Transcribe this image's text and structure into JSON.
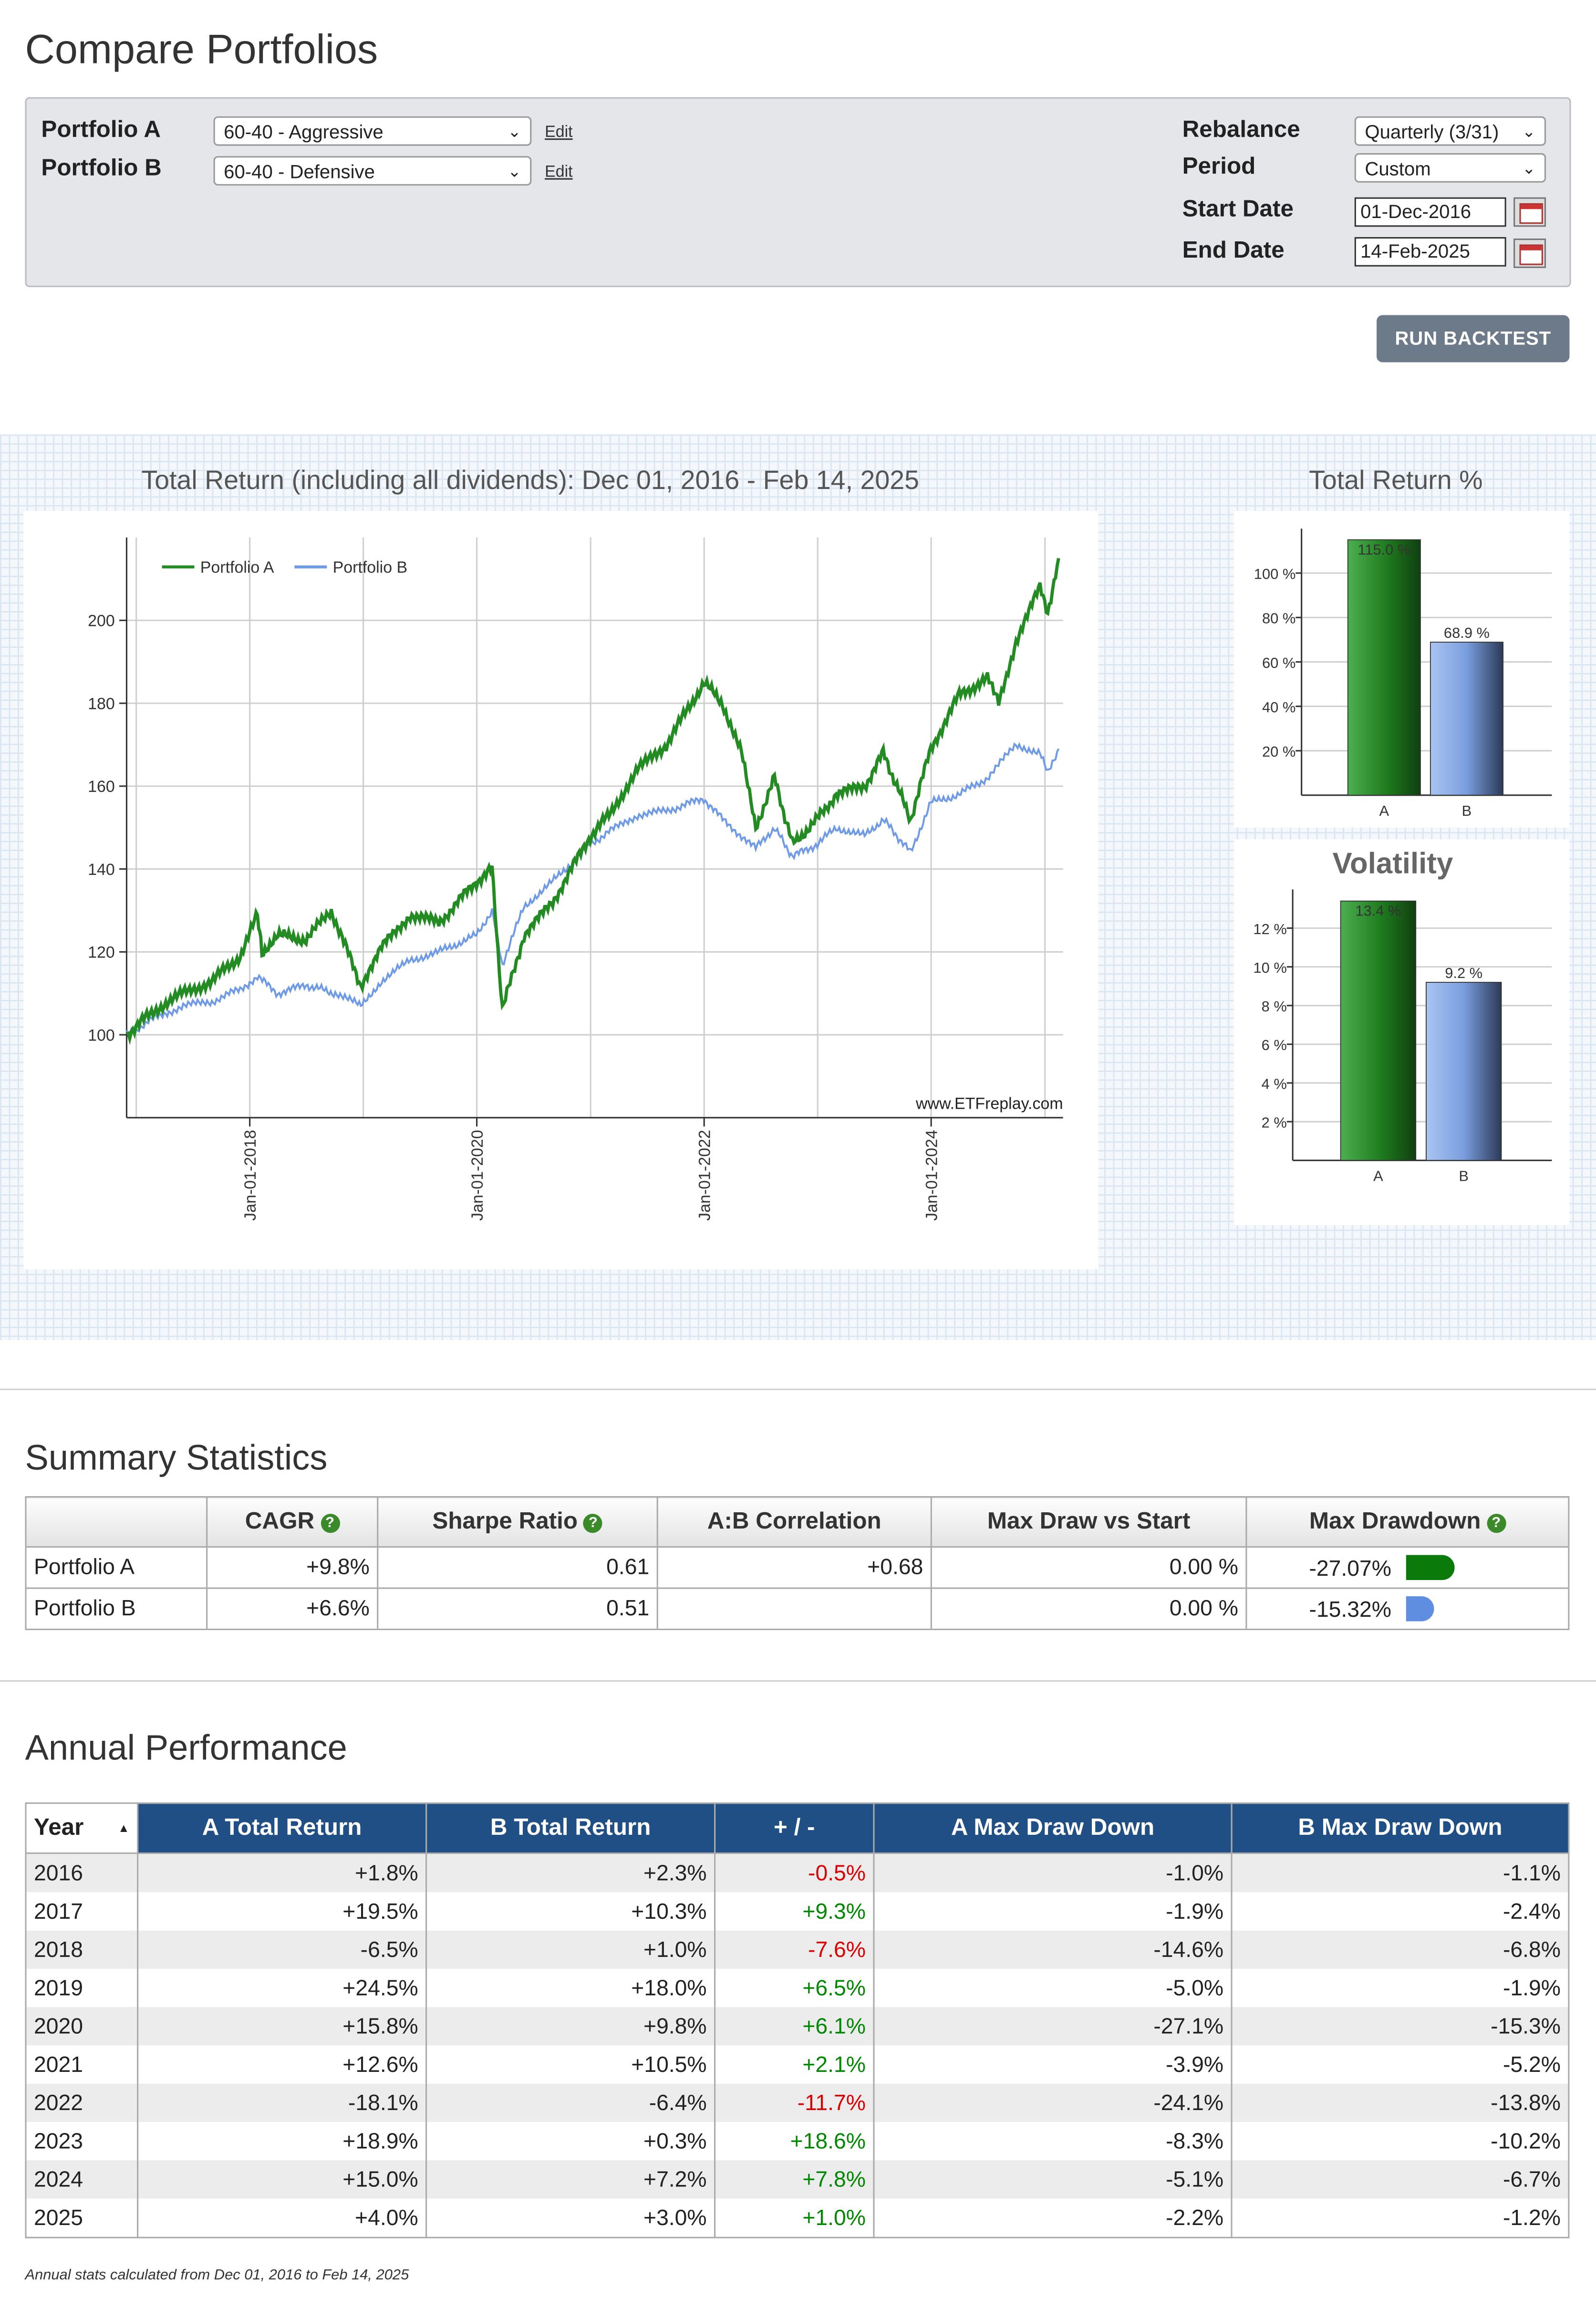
{
  "page_title": "Compare Portfolios",
  "form": {
    "portfolio_a_label": "Portfolio A",
    "portfolio_a_value": "60-40 - Aggressive",
    "portfolio_b_label": "Portfolio B",
    "portfolio_b_value": "60-40 - Defensive",
    "edit_label": "Edit",
    "rebalance_label": "Rebalance",
    "rebalance_value": "Quarterly (3/31)",
    "period_label": "Period",
    "period_value": "Custom",
    "start_label": "Start Date",
    "start_value": "01-Dec-2016",
    "end_label": "End Date",
    "end_value": "14-Feb-2025",
    "run_label": "RUN BACKTEST"
  },
  "charts": {
    "main_title": "Total Return (including all dividends): Dec 01, 2016 - Feb 14, 2025",
    "side_title": "Total Return %",
    "vol_title": "Volatility",
    "watermark": "www.ETFreplay.com",
    "colors": {
      "a": "#228b22",
      "b": "#6f9ae6"
    }
  },
  "chart_data": [
    {
      "type": "line",
      "legend": [
        "Portfolio A",
        "Portfolio B"
      ],
      "legend_position": "top-left",
      "x_ticks": [
        "Jan-01-2018",
        "Jan-01-2020",
        "Jan-01-2022",
        "Jan-01-2024"
      ],
      "y_ticks": [
        100,
        120,
        140,
        160,
        180,
        200
      ],
      "ylim": [
        80,
        220
      ],
      "grid": true,
      "series": [
        {
          "name": "Portfolio A",
          "x": [
            "2016-12-01",
            "2017-03-01",
            "2017-06-01",
            "2017-09-01",
            "2017-12-01",
            "2018-01-26",
            "2018-02-09",
            "2018-04-01",
            "2018-07-01",
            "2018-09-20",
            "2018-12-24",
            "2019-03-01",
            "2019-06-01",
            "2019-09-01",
            "2019-12-31",
            "2020-02-19",
            "2020-03-23",
            "2020-06-01",
            "2020-09-01",
            "2020-12-31",
            "2021-03-01",
            "2021-06-01",
            "2021-09-01",
            "2021-12-31",
            "2022-03-01",
            "2022-05-01",
            "2022-06-16",
            "2022-08-15",
            "2022-10-12",
            "2022-12-31",
            "2023-03-01",
            "2023-06-01",
            "2023-07-31",
            "2023-10-27",
            "2023-12-31",
            "2024-03-31",
            "2024-06-30",
            "2024-08-05",
            "2024-09-30",
            "2024-12-16",
            "2025-01-10",
            "2025-02-14"
          ],
          "y": [
            100,
            106,
            110,
            113,
            119,
            129,
            120,
            124,
            123,
            130,
            112,
            121,
            129,
            127,
            137,
            140,
            106,
            124,
            132,
            148,
            153,
            164,
            170,
            185,
            180,
            168,
            150,
            162,
            146,
            152,
            158,
            160,
            168,
            152,
            169,
            182,
            186,
            180,
            195,
            208,
            202,
            215
          ]
        },
        {
          "name": "Portfolio B",
          "x": [
            "2016-12-01",
            "2017-03-01",
            "2017-06-01",
            "2017-09-01",
            "2017-12-01",
            "2018-01-26",
            "2018-04-01",
            "2018-07-01",
            "2018-10-03",
            "2018-12-24",
            "2019-03-01",
            "2019-06-01",
            "2019-09-01",
            "2019-12-31",
            "2020-02-19",
            "2020-03-23",
            "2020-06-01",
            "2020-09-01",
            "2020-12-31",
            "2021-03-01",
            "2021-06-01",
            "2021-09-01",
            "2021-12-31",
            "2022-03-01",
            "2022-06-16",
            "2022-08-15",
            "2022-10-12",
            "2022-12-31",
            "2023-03-01",
            "2023-06-01",
            "2023-07-31",
            "2023-10-27",
            "2023-12-31",
            "2024-03-31",
            "2024-06-30",
            "2024-09-30",
            "2024-12-16",
            "2025-01-10",
            "2025-02-14"
          ],
          "y": [
            100,
            104,
            107,
            108,
            111,
            114,
            110,
            112,
            110,
            107,
            113,
            118,
            120,
            124,
            130,
            117,
            131,
            137,
            146,
            149,
            153,
            154,
            157,
            152,
            145,
            150,
            143,
            146,
            150,
            148,
            152,
            144,
            156,
            158,
            162,
            170,
            168,
            163,
            169
          ]
        }
      ]
    },
    {
      "type": "bar",
      "title": "Total Return %",
      "categories": [
        "A",
        "B"
      ],
      "values": [
        115.0,
        68.9
      ],
      "labels": [
        "115.0 %",
        "68.9 %"
      ],
      "y_ticks": [
        "20 %",
        "40 %",
        "60 %",
        "80 %",
        "100 %"
      ],
      "ylim": [
        0,
        120
      ]
    },
    {
      "type": "bar",
      "title": "Volatility",
      "categories": [
        "A",
        "B"
      ],
      "values": [
        13.4,
        9.2
      ],
      "labels": [
        "13.4 %",
        "9.2 %"
      ],
      "y_ticks": [
        "2 %",
        "4 %",
        "6 %",
        "8 %",
        "10 %",
        "12 %"
      ],
      "ylim": [
        0,
        14
      ]
    }
  ],
  "summary": {
    "title": "Summary Statistics",
    "headers": [
      "",
      "CAGR",
      "Sharpe Ratio",
      "A:B Correlation",
      "Max Draw vs Start",
      "Max Drawdown"
    ],
    "help_glyph": "?",
    "rows": [
      {
        "name": "Portfolio A",
        "cagr": "+9.8%",
        "sharpe": "0.61",
        "corr": "+0.68",
        "mdvs": "0.00 %",
        "mdd": "-27.07%",
        "mdd_fraction": 0.2707
      },
      {
        "name": "Portfolio B",
        "cagr": "+6.6%",
        "sharpe": "0.51",
        "corr": "",
        "mdvs": "0.00 %",
        "mdd": "-15.32%",
        "mdd_fraction": 0.1532
      }
    ]
  },
  "annual": {
    "title": "Annual Performance",
    "headers": [
      "Year",
      "A Total Return",
      "B Total Return",
      "+ / -",
      "A Max Draw Down",
      "B Max Draw Down"
    ],
    "sort_glyph": "▲",
    "rows": [
      [
        "2016",
        "+1.8%",
        "+2.3%",
        "-0.5%",
        "-1.0%",
        "-1.1%"
      ],
      [
        "2017",
        "+19.5%",
        "+10.3%",
        "+9.3%",
        "-1.9%",
        "-2.4%"
      ],
      [
        "2018",
        "-6.5%",
        "+1.0%",
        "-7.6%",
        "-14.6%",
        "-6.8%"
      ],
      [
        "2019",
        "+24.5%",
        "+18.0%",
        "+6.5%",
        "-5.0%",
        "-1.9%"
      ],
      [
        "2020",
        "+15.8%",
        "+9.8%",
        "+6.1%",
        "-27.1%",
        "-15.3%"
      ],
      [
        "2021",
        "+12.6%",
        "+10.5%",
        "+2.1%",
        "-3.9%",
        "-5.2%"
      ],
      [
        "2022",
        "-18.1%",
        "-6.4%",
        "-11.7%",
        "-24.1%",
        "-13.8%"
      ],
      [
        "2023",
        "+18.9%",
        "+0.3%",
        "+18.6%",
        "-8.3%",
        "-10.2%"
      ],
      [
        "2024",
        "+15.0%",
        "+7.2%",
        "+7.8%",
        "-5.1%",
        "-6.7%"
      ],
      [
        "2025",
        "+4.0%",
        "+3.0%",
        "+1.0%",
        "-2.2%",
        "-1.2%"
      ]
    ],
    "note": "Annual stats calculated from Dec 01, 2016 to Feb 14, 2025"
  }
}
